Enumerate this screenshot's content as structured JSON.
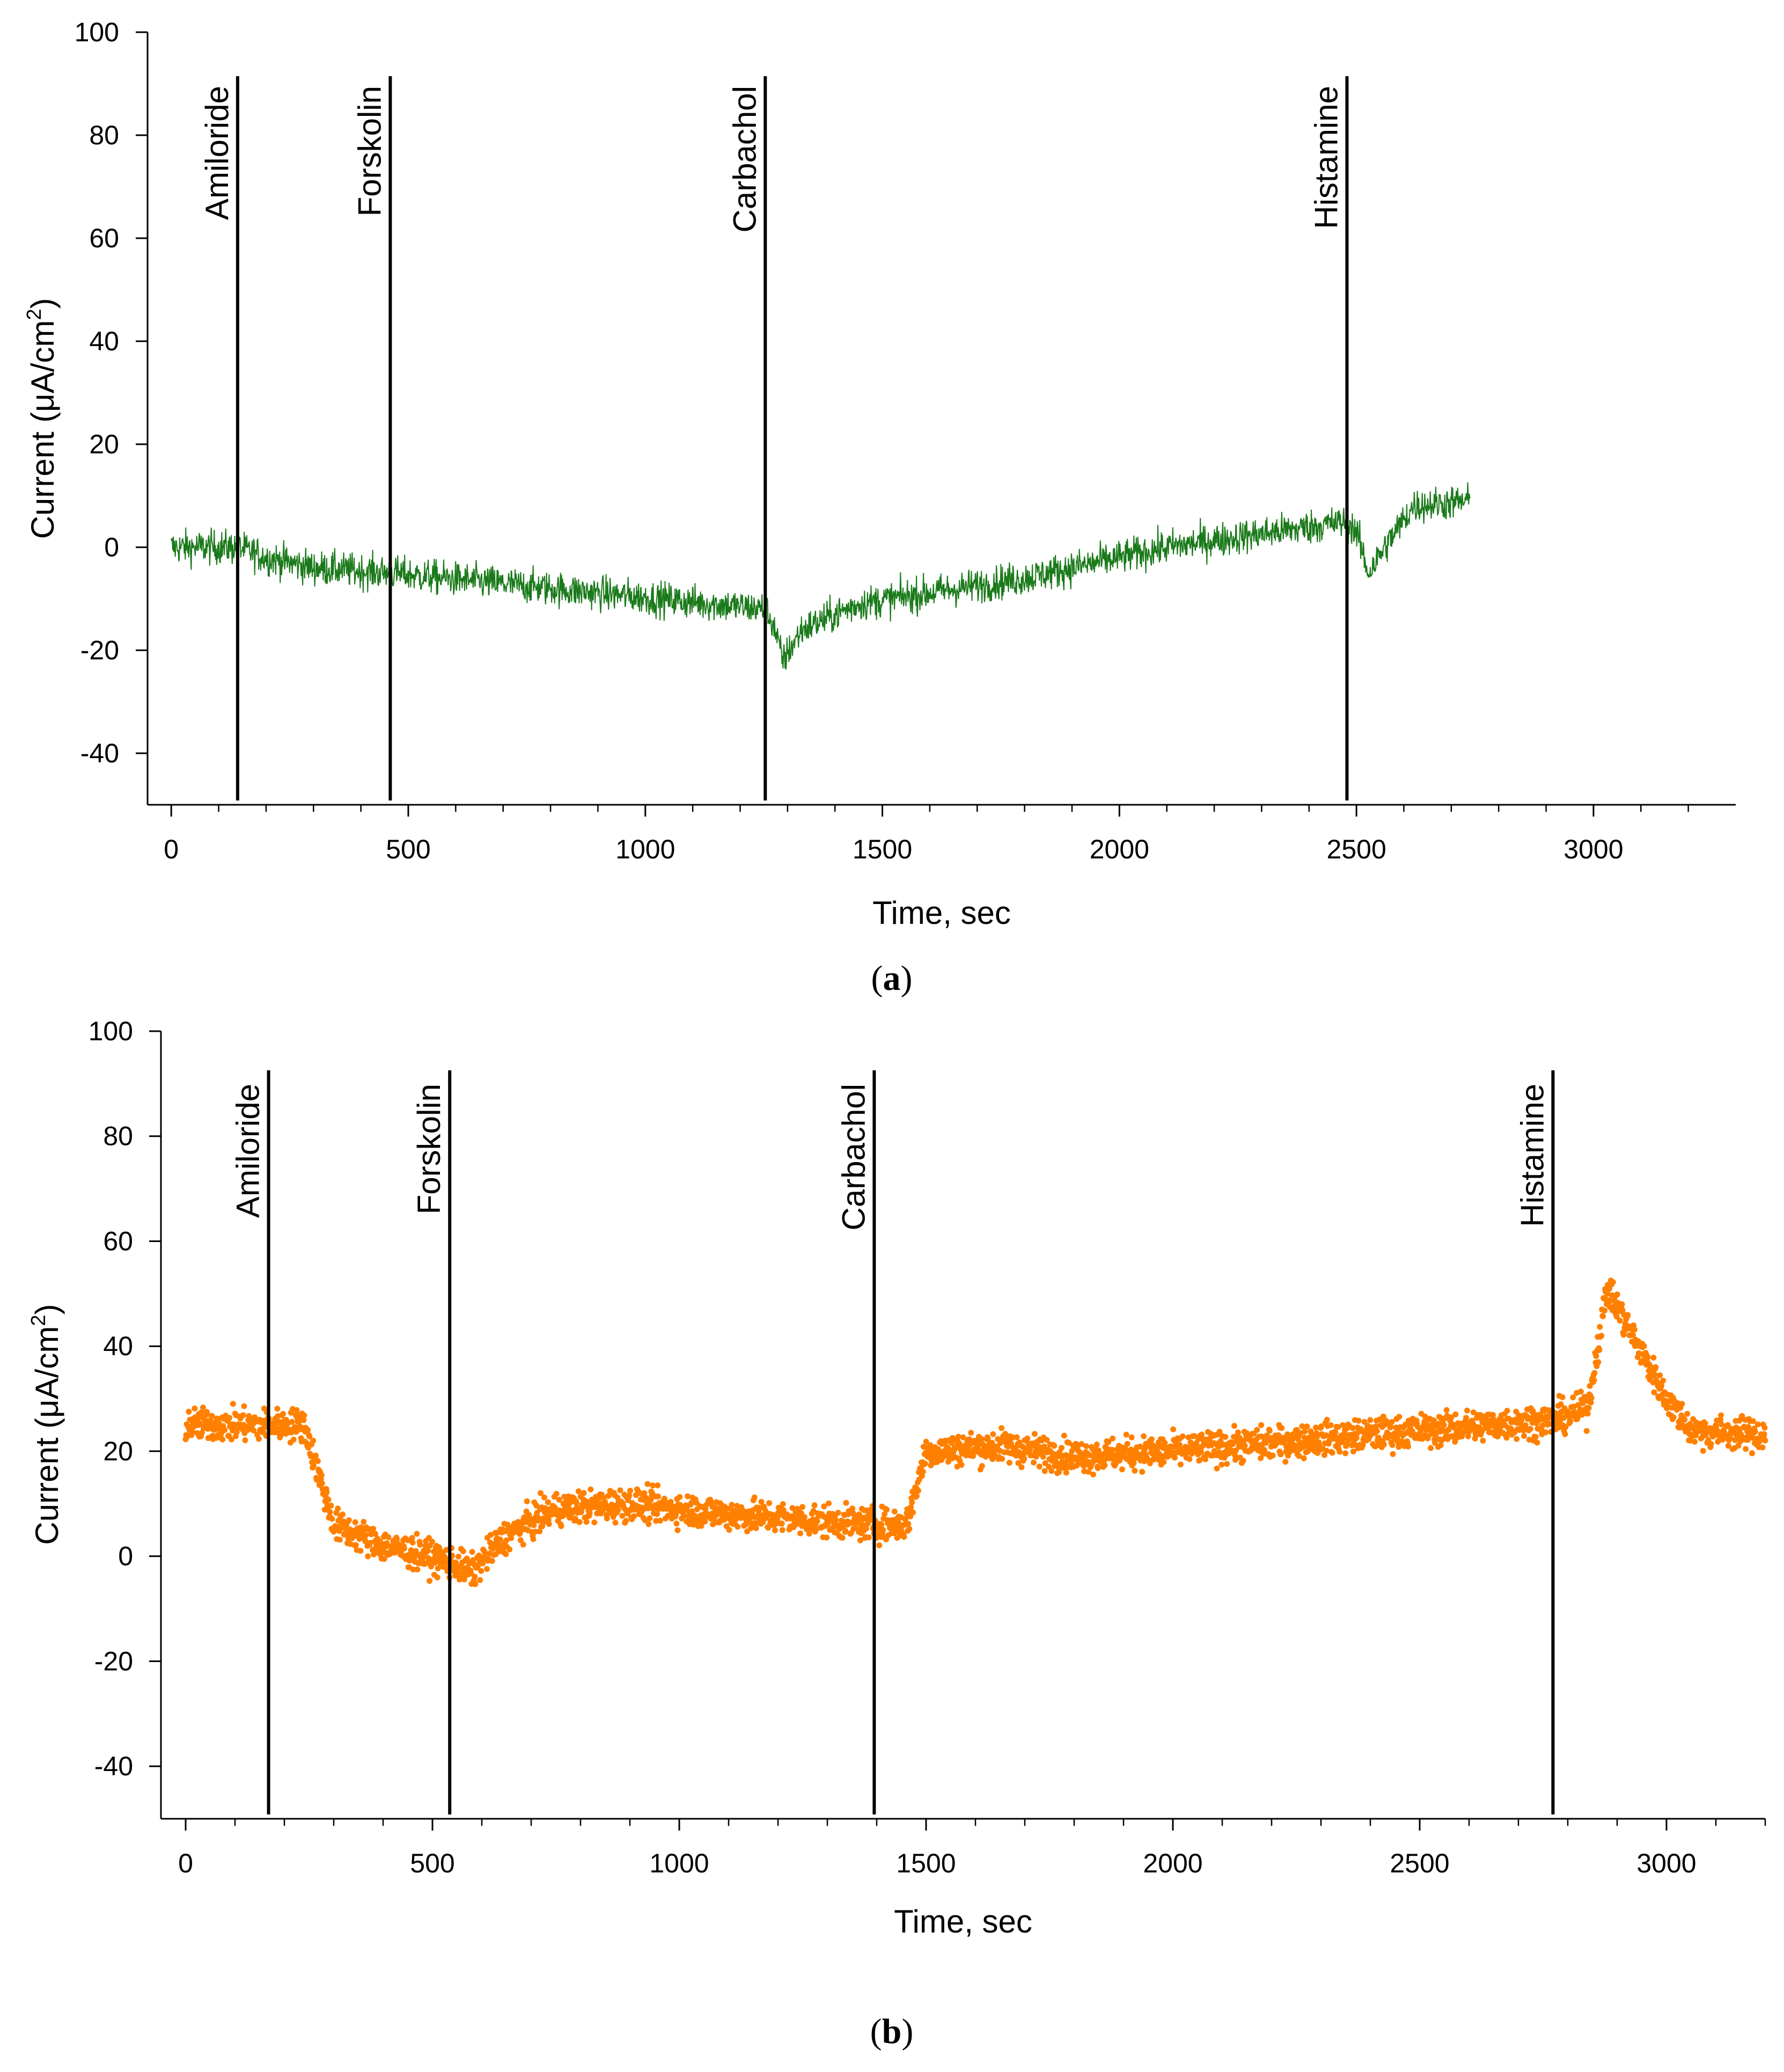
{
  "figure": {
    "panels": [
      "a",
      "b"
    ]
  },
  "chart_data": [
    {
      "panel": "a",
      "caption_open": "(",
      "caption_letter": "a",
      "caption_close": ")",
      "type": "line",
      "xlabel": "Time, sec",
      "ylabel_prefix": "Current (",
      "ylabel_unit": "μA/cm",
      "ylabel_exp": "2",
      "ylabel_suffix": ")",
      "xlim": [
        -50,
        3300
      ],
      "ylim": [
        -50,
        100
      ],
      "xticks": [
        0,
        500,
        1000,
        1500,
        2000,
        2500,
        3000
      ],
      "yticks": [
        100,
        80,
        60,
        40,
        20,
        0,
        -20,
        -40
      ],
      "series_color": "#1a7a1a",
      "trace_style": "line",
      "events": [
        {
          "label": "Amiloride",
          "time": 140
        },
        {
          "label": "Forskolin",
          "time": 462
        },
        {
          "label": "Carbachol",
          "time": 1253
        },
        {
          "label": "Histamine",
          "time": 2480
        }
      ],
      "trend": [
        [
          0,
          0
        ],
        [
          140,
          0
        ],
        [
          200,
          -2
        ],
        [
          300,
          -4
        ],
        [
          462,
          -5
        ],
        [
          800,
          -8
        ],
        [
          1253,
          -12
        ],
        [
          1270,
          -15
        ],
        [
          1290,
          -22
        ],
        [
          1330,
          -16
        ],
        [
          1450,
          -11
        ],
        [
          1800,
          -6
        ],
        [
          2100,
          0
        ],
        [
          2480,
          5
        ],
        [
          2500,
          3
        ],
        [
          2525,
          -5
        ],
        [
          2560,
          0
        ],
        [
          2620,
          8
        ],
        [
          2740,
          9
        ]
      ]
    },
    {
      "panel": "b",
      "caption_open": "(",
      "caption_letter": "b",
      "caption_close": ")",
      "type": "scatter",
      "xlabel": "Time, sec",
      "ylabel_prefix": "Current (",
      "ylabel_unit": "μA/cm",
      "ylabel_exp": "2",
      "ylabel_suffix": ")",
      "xlim": [
        -50,
        3200
      ],
      "ylim": [
        -50,
        100
      ],
      "xticks": [
        0,
        500,
        1000,
        1500,
        2000,
        2500,
        3000
      ],
      "yticks": [
        100,
        80,
        60,
        40,
        20,
        0,
        -20,
        -40
      ],
      "series_color": "#ff8000",
      "trace_style": "dots",
      "events": [
        {
          "label": "Amiloride",
          "time": 168
        },
        {
          "label": "Forskolin",
          "time": 535
        },
        {
          "label": "Carbachol",
          "time": 1395
        },
        {
          "label": "Histamine",
          "time": 2770
        }
      ],
      "trend": [
        [
          0,
          25
        ],
        [
          168,
          25
        ],
        [
          240,
          25
        ],
        [
          300,
          6
        ],
        [
          400,
          2
        ],
        [
          535,
          -1
        ],
        [
          580,
          -3
        ],
        [
          650,
          4
        ],
        [
          750,
          9
        ],
        [
          900,
          10
        ],
        [
          1100,
          8
        ],
        [
          1395,
          6
        ],
        [
          1460,
          6
        ],
        [
          1500,
          20
        ],
        [
          1650,
          21
        ],
        [
          1800,
          19
        ],
        [
          2000,
          20
        ],
        [
          2770,
          26
        ],
        [
          2840,
          28
        ],
        [
          2880,
          51
        ],
        [
          2920,
          44
        ],
        [
          3000,
          30
        ],
        [
          3050,
          24
        ],
        [
          3200,
          23
        ]
      ]
    }
  ]
}
